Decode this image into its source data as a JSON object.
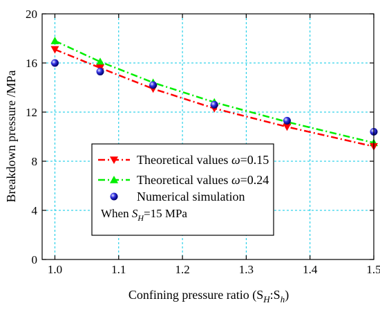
{
  "chart_data": {
    "type": "line",
    "xlabel": "Confining pressure ratio (S",
    "xlabel_sub1": "H",
    "xlabel_mid": ":S",
    "xlabel_sub2": "h",
    "xlabel_end": ")",
    "ylabel": "Breakdown pressure /MPa",
    "xlim": [
      0.98,
      1.5
    ],
    "ylim": [
      0,
      20
    ],
    "xticks": [
      "1.0",
      "1.1",
      "1.2",
      "1.3",
      "1.4",
      "1.5"
    ],
    "yticks": [
      "0",
      "4",
      "8",
      "12",
      "16",
      "20"
    ],
    "grid": true,
    "legend_position": "lower-left",
    "series": [
      {
        "name": "Theoretical values ω=0.15",
        "name_prefix": "Theoretical values ",
        "name_symbol": "ω",
        "name_value": "=0.15",
        "style": "dash-dot line with down-triangle markers",
        "color": "#ff0000",
        "x": [
          1.0,
          1.071,
          1.154,
          1.25,
          1.364,
          1.5
        ],
        "y": [
          17.1,
          15.6,
          13.9,
          12.3,
          10.8,
          9.2
        ]
      },
      {
        "name": "Theoretical values ω=0.24",
        "name_prefix": "Theoretical values ",
        "name_symbol": "ω",
        "name_value": "=0.24",
        "style": "dash-dot line with up-triangle markers",
        "color": "#00ee00",
        "x": [
          1.0,
          1.071,
          1.154,
          1.25,
          1.364,
          1.5
        ],
        "y": [
          17.8,
          16.1,
          14.4,
          12.8,
          11.2,
          9.5
        ]
      },
      {
        "name": "Numerical simulation",
        "style": "blue spheres",
        "color": "#1a1acc",
        "x": [
          1.0,
          1.071,
          1.154,
          1.25,
          1.364,
          1.5
        ],
        "y": [
          16.0,
          15.3,
          14.2,
          12.6,
          11.3,
          10.4
        ]
      }
    ],
    "annotation": {
      "prefix": "When ",
      "var": "S",
      "sub": "H",
      "suffix": "=15 MPa"
    }
  }
}
